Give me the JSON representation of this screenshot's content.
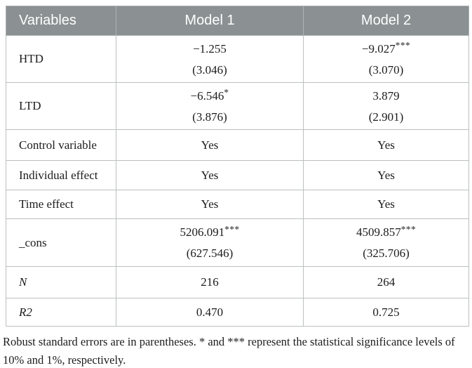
{
  "header": {
    "col_variables": "Variables",
    "col_model1": "Model 1",
    "col_model2": "Model 2"
  },
  "rows": {
    "htd": {
      "label": "HTD",
      "m1": {
        "est": "−1.255",
        "stars": "",
        "se": "(3.046)"
      },
      "m2": {
        "est": "−9.027",
        "stars": "***",
        "se": "(3.070)"
      }
    },
    "ltd": {
      "label": "LTD",
      "m1": {
        "est": "−6.546",
        "stars": "*",
        "se": "(3.876)"
      },
      "m2": {
        "est": "3.879",
        "stars": "",
        "se": "(2.901)"
      }
    },
    "control": {
      "label": "Control variable",
      "m1": "Yes",
      "m2": "Yes"
    },
    "individual": {
      "label": "Individual effect",
      "m1": "Yes",
      "m2": "Yes"
    },
    "time": {
      "label": "Time effect",
      "m1": "Yes",
      "m2": "Yes"
    },
    "cons": {
      "label": "_cons",
      "m1": {
        "est": "5206.091",
        "stars": "***",
        "se": "(627.546)"
      },
      "m2": {
        "est": "4509.857",
        "stars": "***",
        "se": "(325.706)"
      }
    },
    "n": {
      "label": "N",
      "m1": "216",
      "m2": "264"
    },
    "r2": {
      "label": "R2",
      "m1": "0.470",
      "m2": "0.725"
    }
  },
  "footnote": "Robust standard errors are in parentheses. * and *** represent the statistical significance levels of 10% and 1%, respectively.",
  "colors": {
    "header_bg": "#8b9192",
    "header_text": "#ffffff",
    "border": "#bcc0c0",
    "text": "#1c1c1c"
  }
}
